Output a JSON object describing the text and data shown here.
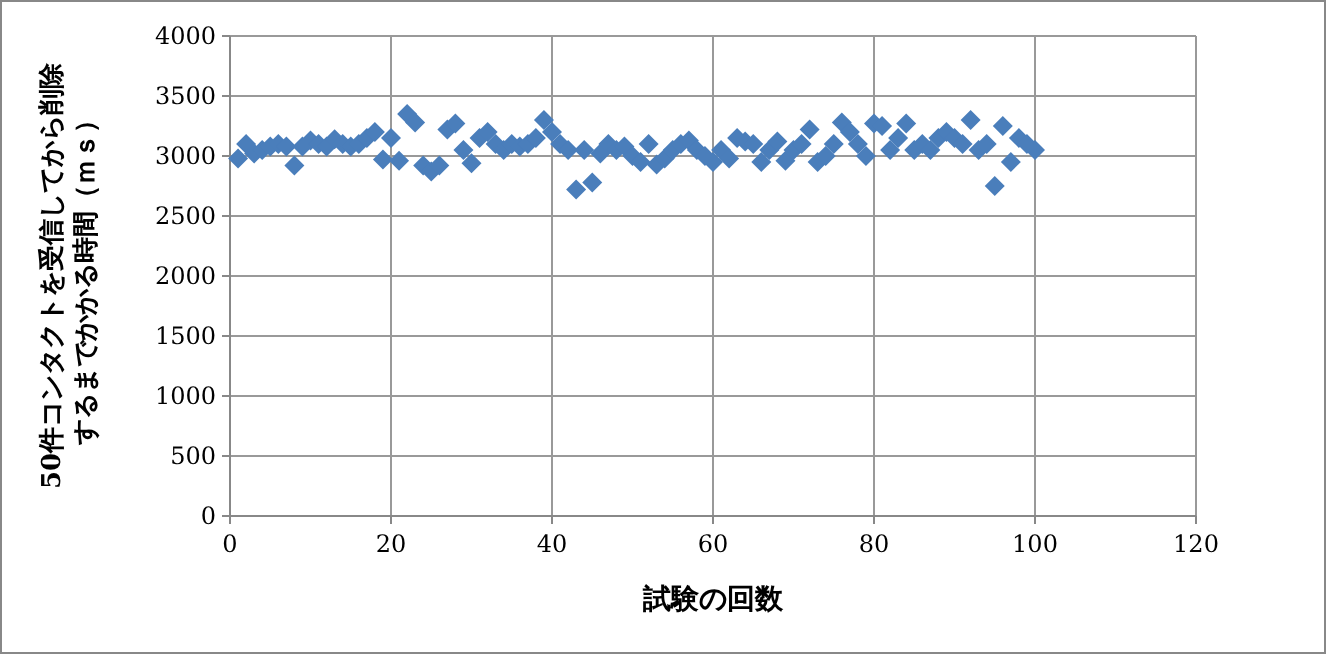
{
  "chart_data": {
    "type": "scatter",
    "xlabel": "試験の回数",
    "ylabel": "50件コンタクトを受信してから削除するまでかかる時間（ｍｓ）",
    "x": [
      1,
      2,
      3,
      4,
      5,
      6,
      7,
      8,
      9,
      10,
      11,
      12,
      13,
      14,
      15,
      16,
      17,
      18,
      19,
      20,
      21,
      22,
      23,
      24,
      25,
      26,
      27,
      28,
      29,
      30,
      31,
      32,
      33,
      34,
      35,
      36,
      37,
      38,
      39,
      40,
      41,
      42,
      43,
      44,
      45,
      46,
      47,
      48,
      49,
      50,
      51,
      52,
      53,
      54,
      55,
      56,
      57,
      58,
      59,
      60,
      61,
      62,
      63,
      64,
      65,
      66,
      67,
      68,
      69,
      70,
      71,
      72,
      73,
      74,
      75,
      76,
      77,
      78,
      79,
      80,
      81,
      82,
      83,
      84,
      85,
      86,
      87,
      88,
      89,
      90,
      91,
      92,
      93,
      94,
      95,
      96,
      97,
      98,
      99,
      100
    ],
    "values": [
      2980,
      3100,
      3020,
      3050,
      3080,
      3100,
      3080,
      2920,
      3080,
      3130,
      3100,
      3080,
      3140,
      3100,
      3080,
      3100,
      3150,
      3200,
      2970,
      3150,
      2960,
      3350,
      3280,
      2920,
      2870,
      2920,
      3220,
      3270,
      3050,
      2940,
      3150,
      3200,
      3100,
      3050,
      3100,
      3080,
      3100,
      3150,
      3300,
      3200,
      3100,
      3050,
      2720,
      3050,
      2780,
      3020,
      3100,
      3050,
      3080,
      3000,
      2950,
      3100,
      2930,
      2980,
      3050,
      3100,
      3130,
      3050,
      3000,
      2950,
      3050,
      2980,
      3150,
      3120,
      3100,
      2950,
      3050,
      3120,
      2960,
      3050,
      3100,
      3220,
      2950,
      3000,
      3100,
      3280,
      3200,
      3100,
      3000,
      3270,
      3250,
      3050,
      3150,
      3270,
      3050,
      3100,
      3050,
      3150,
      3200,
      3150,
      3100,
      3300,
      3050,
      3100,
      2750,
      3250,
      2950,
      3150,
      3100,
      3050
    ],
    "color": "#4a7ebb",
    "marker": "diamond",
    "grid": true,
    "xlim": [
      0,
      120
    ],
    "xticks": [
      0,
      20,
      40,
      60,
      80,
      100,
      120
    ],
    "ylim": [
      0,
      4000
    ],
    "yticks": [
      0,
      500,
      1000,
      1500,
      2000,
      2500,
      3000,
      3500,
      4000
    ]
  }
}
